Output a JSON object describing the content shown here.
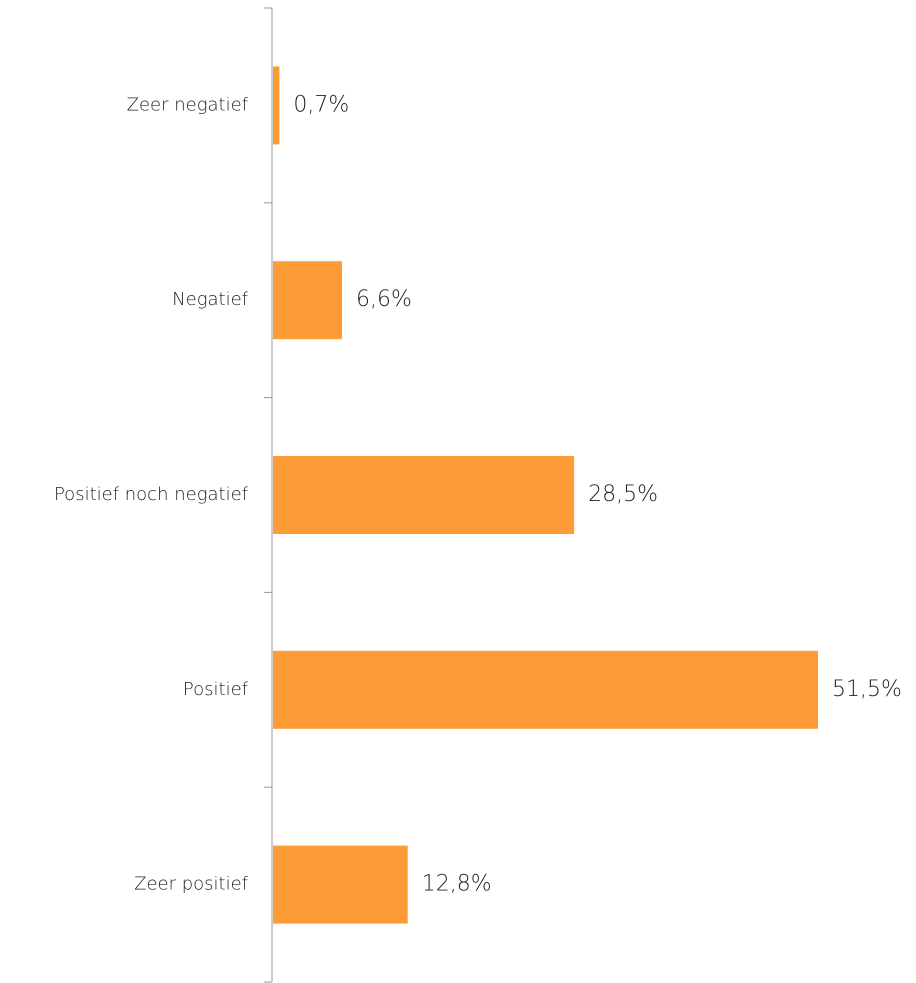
{
  "chart_data": {
    "type": "bar",
    "orientation": "horizontal",
    "categories": [
      "Zeer negatief",
      "Negatief",
      "Positief noch negatief",
      "Positief",
      "Zeer positief"
    ],
    "values": [
      0.7,
      6.6,
      28.5,
      51.5,
      12.8
    ],
    "value_labels": [
      "0,7%",
      "6,6%",
      "28,5%",
      "51,5%",
      "12,8%"
    ],
    "color": "#fd9b37"
  }
}
